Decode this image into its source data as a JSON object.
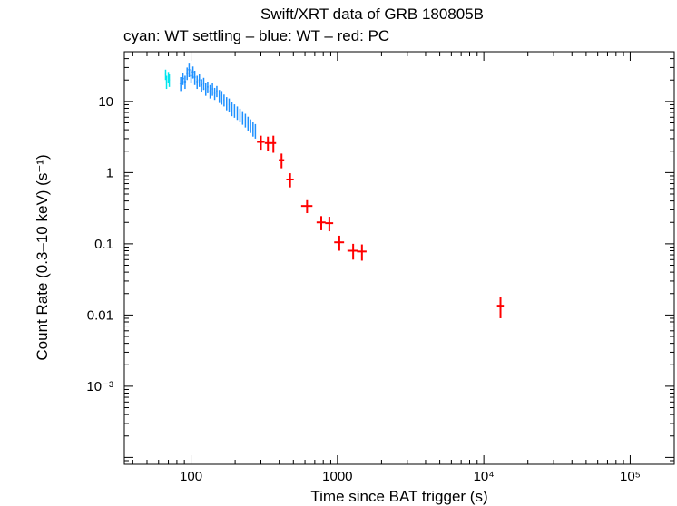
{
  "chart_data": {
    "type": "scatter",
    "title": "Swift/XRT data of GRB 180805B",
    "subtitle": "cyan: WT settling – blue: WT – red: PC",
    "xlabel": "Time since BAT trigger (s)",
    "ylabel": "Count Rate (0.3–10 keV) (s⁻¹)",
    "x_scale": "log",
    "y_scale": "log",
    "xlim": [
      35,
      200000
    ],
    "ylim": [
      8e-05,
      50
    ],
    "x_ticks": [
      {
        "value": 100,
        "label": "100"
      },
      {
        "value": 1000,
        "label": "1000"
      },
      {
        "value": 10000,
        "label": "10⁴"
      },
      {
        "value": 100000,
        "label": "10⁵"
      }
    ],
    "y_ticks": [
      {
        "value": 10,
        "label": "10"
      },
      {
        "value": 1,
        "label": "1"
      },
      {
        "value": 0.1,
        "label": "0.1"
      },
      {
        "value": 0.01,
        "label": "0.01"
      },
      {
        "value": 0.001,
        "label": "10⁻³"
      }
    ],
    "series": [
      {
        "name": "WT settling",
        "color": "#00e5ee",
        "points": [
          {
            "x": 67,
            "y": 24,
            "xerr": [
              0.6,
              0.6
            ],
            "yerr": [
              4,
              4
            ]
          },
          {
            "x": 68,
            "y": 19,
            "xerr": [
              0.6,
              0.6
            ],
            "yerr": [
              4,
              4
            ]
          },
          {
            "x": 70,
            "y": 22,
            "xerr": [
              0.6,
              0.6
            ],
            "yerr": [
              4,
              4
            ]
          },
          {
            "x": 71,
            "y": 20,
            "xerr": [
              0.6,
              0.6
            ],
            "yerr": [
              4,
              4
            ]
          }
        ]
      },
      {
        "name": "WT",
        "color": "#1e90ff",
        "points": [
          {
            "x": 85,
            "y": 18,
            "xerr": [
              1.5,
              1.5
            ],
            "yerr": [
              4,
              4
            ]
          },
          {
            "x": 88,
            "y": 21,
            "xerr": [
              1.5,
              1.5
            ],
            "yerr": [
              4,
              4
            ]
          },
          {
            "x": 91,
            "y": 19,
            "xerr": [
              1.5,
              1.5
            ],
            "yerr": [
              4,
              4
            ]
          },
          {
            "x": 94,
            "y": 25,
            "xerr": [
              1.5,
              1.5
            ],
            "yerr": [
              5,
              5
            ]
          },
          {
            "x": 97,
            "y": 28,
            "xerr": [
              1.5,
              1.5
            ],
            "yerr": [
              6,
              6
            ]
          },
          {
            "x": 100,
            "y": 23,
            "xerr": [
              1.5,
              1.5
            ],
            "yerr": [
              5,
              5
            ]
          },
          {
            "x": 103,
            "y": 26,
            "xerr": [
              1.5,
              1.5
            ],
            "yerr": [
              5,
              5
            ]
          },
          {
            "x": 106,
            "y": 22,
            "xerr": [
              1.5,
              1.5
            ],
            "yerr": [
              5,
              5
            ]
          },
          {
            "x": 110,
            "y": 19,
            "xerr": [
              1.5,
              1.5
            ],
            "yerr": [
              4,
              4
            ]
          },
          {
            "x": 114,
            "y": 20,
            "xerr": [
              1.5,
              1.5
            ],
            "yerr": [
              4,
              4
            ]
          },
          {
            "x": 118,
            "y": 17,
            "xerr": [
              1.5,
              1.5
            ],
            "yerr": [
              3.5,
              3.5
            ]
          },
          {
            "x": 122,
            "y": 18,
            "xerr": [
              1.5,
              1.5
            ],
            "yerr": [
              3.5,
              3.5
            ]
          },
          {
            "x": 126,
            "y": 15,
            "xerr": [
              1.5,
              1.5
            ],
            "yerr": [
              3,
              3
            ]
          },
          {
            "x": 130,
            "y": 16,
            "xerr": [
              1.5,
              1.5
            ],
            "yerr": [
              3,
              3
            ]
          },
          {
            "x": 135,
            "y": 14,
            "xerr": [
              1.5,
              1.5
            ],
            "yerr": [
              3,
              3
            ]
          },
          {
            "x": 140,
            "y": 15,
            "xerr": [
              1.5,
              1.5
            ],
            "yerr": [
              3,
              3
            ]
          },
          {
            "x": 145,
            "y": 13,
            "xerr": [
              1.5,
              1.5
            ],
            "yerr": [
              2.5,
              2.5
            ]
          },
          {
            "x": 150,
            "y": 14,
            "xerr": [
              1.5,
              1.5
            ],
            "yerr": [
              2.5,
              2.5
            ]
          },
          {
            "x": 156,
            "y": 12,
            "xerr": [
              1.5,
              1.5
            ],
            "yerr": [
              2.5,
              2.5
            ]
          },
          {
            "x": 162,
            "y": 11.5,
            "xerr": [
              1.5,
              1.5
            ],
            "yerr": [
              2.5,
              2.5
            ]
          },
          {
            "x": 168,
            "y": 10.5,
            "xerr": [
              1.5,
              1.5
            ],
            "yerr": [
              2,
              2
            ]
          },
          {
            "x": 175,
            "y": 9.5,
            "xerr": [
              1.5,
              1.5
            ],
            "yerr": [
              2,
              2
            ]
          },
          {
            "x": 182,
            "y": 9,
            "xerr": [
              1.5,
              1.5
            ],
            "yerr": [
              2,
              2
            ]
          },
          {
            "x": 190,
            "y": 8,
            "xerr": [
              1.5,
              1.5
            ],
            "yerr": [
              1.8,
              1.8
            ]
          },
          {
            "x": 198,
            "y": 7.5,
            "xerr": [
              1.5,
              1.5
            ],
            "yerr": [
              1.6,
              1.6
            ]
          },
          {
            "x": 207,
            "y": 7,
            "xerr": [
              1.5,
              1.5
            ],
            "yerr": [
              1.5,
              1.5
            ]
          },
          {
            "x": 216,
            "y": 6.5,
            "xerr": [
              1.5,
              1.5
            ],
            "yerr": [
              1.4,
              1.4
            ]
          },
          {
            "x": 225,
            "y": 6,
            "xerr": [
              1.5,
              1.5
            ],
            "yerr": [
              1.3,
              1.3
            ]
          },
          {
            "x": 235,
            "y": 5.5,
            "xerr": [
              1.5,
              1.5
            ],
            "yerr": [
              1.2,
              1.2
            ]
          },
          {
            "x": 245,
            "y": 5,
            "xerr": [
              1.5,
              1.5
            ],
            "yerr": [
              1.1,
              1.1
            ]
          },
          {
            "x": 255,
            "y": 4.6,
            "xerr": [
              1.5,
              1.5
            ],
            "yerr": [
              1,
              1
            ]
          },
          {
            "x": 265,
            "y": 4.2,
            "xerr": [
              1.5,
              1.5
            ],
            "yerr": [
              1,
              1
            ]
          },
          {
            "x": 275,
            "y": 3.9,
            "xerr": [
              1.5,
              1.5
            ],
            "yerr": [
              0.9,
              0.9
            ]
          }
        ]
      },
      {
        "name": "PC",
        "color": "#ff0000",
        "points": [
          {
            "x": 300,
            "y": 2.7,
            "xerr": [
              18,
              18
            ],
            "yerr": [
              0.6,
              0.6
            ]
          },
          {
            "x": 335,
            "y": 2.6,
            "xerr": [
              16,
              16
            ],
            "yerr": [
              0.6,
              0.6
            ]
          },
          {
            "x": 365,
            "y": 2.6,
            "xerr": [
              16,
              16
            ],
            "yerr": [
              0.7,
              0.7
            ]
          },
          {
            "x": 415,
            "y": 1.5,
            "xerr": [
              18,
              18
            ],
            "yerr": [
              0.35,
              0.35
            ]
          },
          {
            "x": 475,
            "y": 0.8,
            "xerr": [
              28,
              28
            ],
            "yerr": [
              0.18,
              0.18
            ]
          },
          {
            "x": 620,
            "y": 0.34,
            "xerr": [
              55,
              55
            ],
            "yerr": [
              0.07,
              0.07
            ]
          },
          {
            "x": 775,
            "y": 0.2,
            "xerr": [
              55,
              55
            ],
            "yerr": [
              0.045,
              0.045
            ]
          },
          {
            "x": 880,
            "y": 0.195,
            "xerr": [
              55,
              55
            ],
            "yerr": [
              0.045,
              0.045
            ]
          },
          {
            "x": 1030,
            "y": 0.105,
            "xerr": [
              80,
              80
            ],
            "yerr": [
              0.025,
              0.025
            ]
          },
          {
            "x": 1280,
            "y": 0.08,
            "xerr": [
              110,
              110
            ],
            "yerr": [
              0.02,
              0.02
            ]
          },
          {
            "x": 1470,
            "y": 0.078,
            "xerr": [
              110,
              110
            ],
            "yerr": [
              0.02,
              0.02
            ]
          },
          {
            "x": 13000,
            "y": 0.0135,
            "xerr": [
              700,
              700
            ],
            "yerr": [
              0.0045,
              0.0045
            ]
          }
        ]
      }
    ]
  }
}
